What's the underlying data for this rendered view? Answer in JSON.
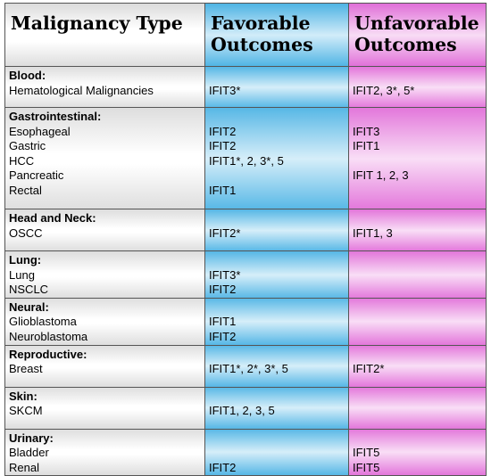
{
  "headers": {
    "col1": "Malignancy Type",
    "col2_l1": "Favorable",
    "col2_l2": "Outcomes",
    "col3_l1": "Unfavorable",
    "col3_l2": "Outcomes"
  },
  "groups": [
    {
      "category": "Blood:",
      "rows": [
        {
          "type": "Hematological Malignancies",
          "favorable": "IFIT3*",
          "unfavorable": "IFIT2, 3*, 5*"
        }
      ]
    },
    {
      "category": "Gastrointestinal:",
      "rows": [
        {
          "type": "Esophageal",
          "favorable": "IFIT2",
          "unfavorable": "IFIT3"
        },
        {
          "type": "Gastric",
          "favorable": "IFIT2",
          "unfavorable": "IFIT1"
        },
        {
          "type": "HCC",
          "favorable": "IFIT1*, 2, 3*, 5",
          "unfavorable": ""
        },
        {
          "type": "Pancreatic",
          "favorable": "",
          "unfavorable": "IFIT 1, 2, 3"
        },
        {
          "type": "Rectal",
          "favorable": "IFIT1",
          "unfavorable": ""
        }
      ]
    },
    {
      "category": "Head and Neck:",
      "rows": [
        {
          "type": "OSCC",
          "favorable": "IFIT2*",
          "unfavorable": "IFIT1, 3"
        }
      ]
    },
    {
      "category": "Lung:",
      "rows": [
        {
          "type": "Lung",
          "favorable": "IFIT3*",
          "unfavorable": ""
        },
        {
          "type": "NSCLC",
          "favorable": "IFIT2",
          "unfavorable": ""
        }
      ]
    },
    {
      "category": "Neural:",
      "rows": [
        {
          "type": "Glioblastoma",
          "favorable": "IFIT1",
          "unfavorable": ""
        },
        {
          "type": "Neuroblastoma",
          "favorable": "IFIT2",
          "unfavorable": ""
        }
      ]
    },
    {
      "category": "Reproductive:",
      "rows": [
        {
          "type": "Breast",
          "favorable": "IFIT1*, 2*, 3*, 5",
          "unfavorable": "IFIT2*"
        }
      ]
    },
    {
      "category": "Skin:",
      "rows": [
        {
          "type": "SKCM",
          "favorable": "IFIT1, 2, 3, 5",
          "unfavorable": ""
        }
      ]
    },
    {
      "category": "Urinary:",
      "rows": [
        {
          "type": "Bladder",
          "favorable": "",
          "unfavorable": "IFIT5"
        },
        {
          "type": "Renal",
          "favorable": "IFIT2",
          "unfavorable": "IFIT5"
        }
      ]
    }
  ]
}
